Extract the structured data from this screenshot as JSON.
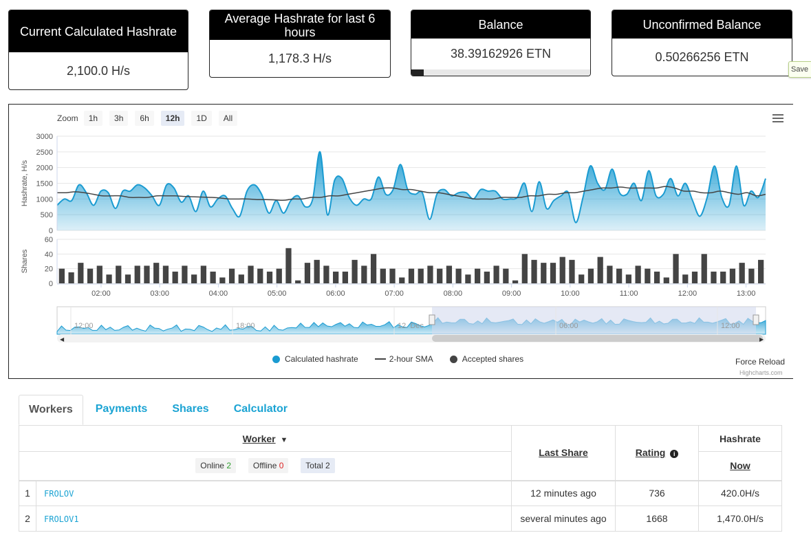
{
  "stats": [
    {
      "title": "Current Calculated Hashrate",
      "value": "2,100.0 H/s"
    },
    {
      "title": "Average Hashrate for last 6 hours",
      "value": "1,178.3 H/s"
    },
    {
      "title": "Balance",
      "value": "38.39162926 ETN",
      "progress": 0.07
    },
    {
      "title": "Unconfirmed Balance",
      "value": "0.50266256 ETN"
    }
  ],
  "save_tooltip": "Save",
  "chart": {
    "zoom_label": "Zoom",
    "zoom_buttons": [
      "1h",
      "3h",
      "6h",
      "12h",
      "1D",
      "All"
    ],
    "zoom_active": "12h",
    "force_reload": "Force Reload",
    "credits": "Highcharts.com",
    "legend": [
      "Calculated hashrate",
      "2-hour SMA",
      "Accepted shares"
    ],
    "navigator_labels": [
      "12:00",
      "18:00",
      "12. Dec",
      "06:00",
      "12:00"
    ],
    "colors": {
      "hashrate": "#1a9bd1",
      "sma": "#444444",
      "shares": "#444444",
      "navigator_mask": "#d3daee"
    }
  },
  "chart_data": {
    "type": "area",
    "x_unit": "time",
    "x_ticks": [
      "02:00",
      "03:00",
      "04:00",
      "05:00",
      "06:00",
      "07:00",
      "08:00",
      "09:00",
      "10:00",
      "11:00",
      "12:00",
      "13:00"
    ],
    "x_range": [
      "01:15",
      "13:20"
    ],
    "hashrate_axis": {
      "label": "Hashrate, H/s",
      "ticks": [
        0,
        500,
        1000,
        1500,
        2000,
        2500,
        3000
      ],
      "ylim": [
        0,
        3000
      ]
    },
    "shares_axis": {
      "label": "Shares",
      "ticks": [
        0,
        20,
        40,
        60
      ],
      "ylim": [
        0,
        60
      ]
    },
    "series": [
      {
        "name": "Calculated hashrate",
        "values": [
          800,
          1000,
          950,
          1450,
          1200,
          800,
          1250,
          1200,
          700,
          1250,
          1250,
          1450,
          1350,
          1100,
          800,
          1450,
          1350,
          900,
          1100,
          600,
          1250,
          750,
          1000,
          1100,
          700,
          450,
          1250,
          1450,
          1150,
          550,
          950,
          550,
          950,
          1100,
          750,
          1000,
          2500,
          500,
          1600,
          1650,
          1050,
          800,
          1000,
          1000,
          1700,
          1150,
          1300,
          2100,
          1300,
          1150,
          1200,
          350,
          1150,
          1300,
          1100,
          1200,
          1200,
          1000,
          1300,
          1250,
          1250,
          1000,
          1000,
          1050,
          1500,
          600,
          1550,
          700,
          950,
          1100,
          1200,
          250,
          1050,
          2050,
          1500,
          1300,
          1950,
          1200,
          1150,
          1500,
          950,
          1900,
          1100,
          1150,
          1650,
          1100,
          1500,
          950,
          450,
          1050,
          2050,
          1050,
          800,
          2050,
          800,
          1250,
          1050,
          1650
        ]
      },
      {
        "name": "2-hour SMA",
        "values": [
          1200,
          1200,
          1230,
          1200,
          1150,
          1100,
          1100,
          1100,
          1050,
          1050,
          1050,
          1100,
          1100,
          1100,
          1080,
          1070,
          1060,
          1050,
          1030,
          1000,
          1000,
          1000,
          980,
          980,
          970,
          960,
          1000,
          1000,
          1050,
          1050,
          1100,
          1100,
          1150,
          1200,
          1250,
          1300,
          1350,
          1350,
          1300,
          1300,
          1250,
          1200,
          1200,
          1150,
          1100,
          1050,
          1000,
          1000,
          1000,
          1050,
          1050,
          1050,
          1100,
          1100,
          1150,
          1150,
          1200,
          1200,
          1250,
          1300,
          1350,
          1350,
          1380,
          1350,
          1350,
          1350,
          1350,
          1400,
          1350,
          1250,
          1250,
          1200,
          1200,
          1250,
          1200,
          1150,
          1200,
          1100,
          1150
        ]
      },
      {
        "name": "Accepted shares",
        "values": [
          20,
          15,
          28,
          20,
          24,
          12,
          24,
          12,
          24,
          24,
          28,
          24,
          16,
          24,
          12,
          24,
          16,
          8,
          20,
          12,
          24,
          20,
          16,
          20,
          48,
          4,
          28,
          32,
          24,
          16,
          16,
          32,
          24,
          40,
          20,
          20,
          8,
          20,
          20,
          24,
          20,
          24,
          20,
          12,
          20,
          16,
          24,
          20,
          4,
          40,
          32,
          28,
          28,
          36,
          32,
          12,
          20,
          36,
          24,
          20,
          12,
          24,
          20,
          16,
          8,
          40,
          12,
          16,
          40,
          16,
          16,
          20,
          28,
          20,
          32
        ]
      }
    ]
  },
  "tabs": [
    "Workers",
    "Payments",
    "Shares",
    "Calculator"
  ],
  "tabs_active": "Workers",
  "table": {
    "worker_header": "Worker",
    "last_share_header": "Last Share",
    "rating_header": "Rating",
    "hashrate_header": "Hashrate",
    "now_header": "Now",
    "filters": {
      "online_label": "Online",
      "online_count": "2",
      "offline_label": "Offline",
      "offline_count": "0",
      "total_label": "Total",
      "total_count": "2"
    },
    "rows": [
      {
        "index": "1",
        "name": "FROLOV",
        "last_share": "12 minutes ago",
        "rating": "736",
        "hashrate": "420.0H/s"
      },
      {
        "index": "2",
        "name": "FROLOV1",
        "last_share": "several minutes ago",
        "rating": "1668",
        "hashrate": "1,470.0H/s"
      }
    ]
  }
}
